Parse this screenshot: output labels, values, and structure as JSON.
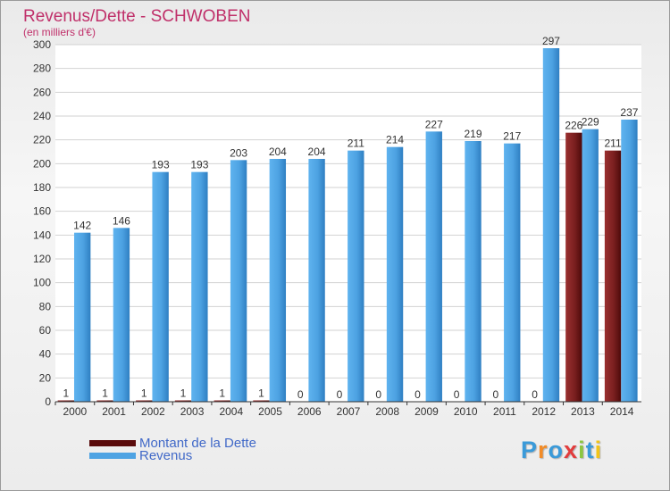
{
  "chart_data": {
    "type": "bar",
    "title": "Revenus/Dette - SCHWOBEN",
    "subtitle": "(en milliers d'€)",
    "xlabel": "",
    "ylabel": "",
    "categories": [
      "2000",
      "2001",
      "2002",
      "2003",
      "2004",
      "2005",
      "2006",
      "2007",
      "2008",
      "2009",
      "2010",
      "2011",
      "2012",
      "2013",
      "2014"
    ],
    "series": [
      {
        "name": "Montant de la Dette",
        "values": [
          1,
          1,
          1,
          1,
          1,
          1,
          0,
          0,
          0,
          0,
          0,
          0,
          0,
          226,
          211
        ],
        "color": "#7a1f1f"
      },
      {
        "name": "Revenus",
        "values": [
          142,
          146,
          193,
          193,
          203,
          204,
          204,
          211,
          214,
          227,
          219,
          217,
          297,
          229,
          237
        ],
        "color": "#4ea3e3"
      }
    ],
    "ylim": [
      0,
      300
    ],
    "yticks": [
      0,
      20,
      40,
      60,
      80,
      100,
      120,
      140,
      160,
      180,
      200,
      220,
      240,
      260,
      280,
      300
    ],
    "grid": true,
    "legend_position": "bottom-left"
  },
  "brand": {
    "letters": [
      "P",
      "r",
      "o",
      "x",
      "i",
      "t",
      "i"
    ],
    "colors": [
      "#3a9ad9",
      "#f28c28",
      "#3a9ad9",
      "#e23c3c",
      "#8cc63f",
      "#3a9ad9",
      "#f2c418"
    ]
  }
}
